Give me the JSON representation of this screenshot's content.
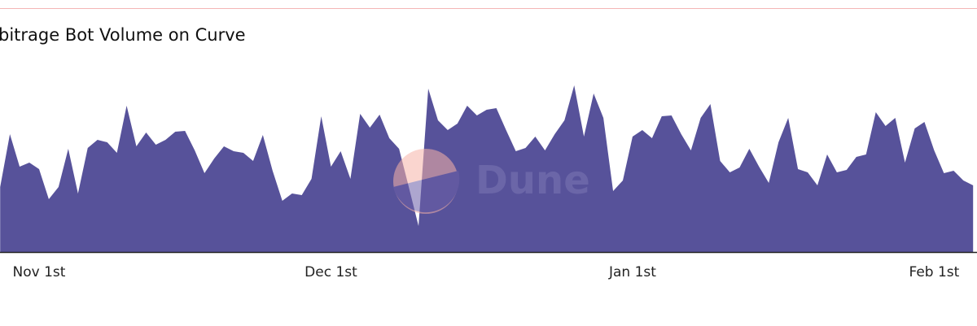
{
  "chart_data": {
    "type": "area",
    "title": "bitrage Bot Volume on Curve",
    "watermark": "Dune",
    "color": "#57529a",
    "ylim": [
      0,
      210
    ],
    "categories": [
      null,
      null,
      null,
      null,
      "Nov 1st",
      null,
      null,
      null,
      null,
      null,
      null,
      null,
      null,
      null,
      null,
      null,
      null,
      null,
      null,
      null,
      null,
      null,
      null,
      null,
      null,
      null,
      null,
      null,
      null,
      null,
      null,
      null,
      null,
      null,
      "Dec 1st",
      null,
      null,
      null,
      null,
      null,
      null,
      null,
      null,
      null,
      null,
      null,
      null,
      null,
      null,
      null,
      null,
      null,
      null,
      null,
      null,
      null,
      null,
      null,
      null,
      null,
      null,
      null,
      null,
      null,
      null,
      "Jan 1st",
      null,
      null,
      null,
      null,
      null,
      null,
      null,
      null,
      null,
      null,
      null,
      null,
      null,
      null,
      null,
      null,
      null,
      null,
      null,
      null,
      null,
      null,
      null,
      null,
      null,
      null,
      null,
      null,
      null,
      null,
      "Feb 1st",
      null,
      null,
      null,
      null
    ],
    "values": [
      80,
      145,
      105,
      110,
      102,
      65,
      80,
      127,
      72,
      128,
      138,
      135,
      122,
      180,
      130,
      147,
      132,
      138,
      148,
      149,
      125,
      97,
      115,
      130,
      124,
      122,
      112,
      144,
      100,
      63,
      72,
      70,
      90,
      167,
      105,
      124,
      90,
      170,
      153,
      169,
      140,
      127,
      80,
      32,
      201,
      162,
      150,
      158,
      180,
      168,
      175,
      177,
      150,
      124,
      128,
      142,
      125,
      145,
      162,
      205,
      142,
      195,
      165,
      75,
      88,
      142,
      150,
      140,
      167,
      168,
      145,
      125,
      165,
      182,
      112,
      98,
      104,
      127,
      105,
      85,
      135,
      165,
      102,
      98,
      82,
      120,
      98,
      101,
      117,
      120,
      172,
      155,
      165,
      110,
      152,
      160,
      125,
      97,
      100,
      88,
      82
    ]
  }
}
